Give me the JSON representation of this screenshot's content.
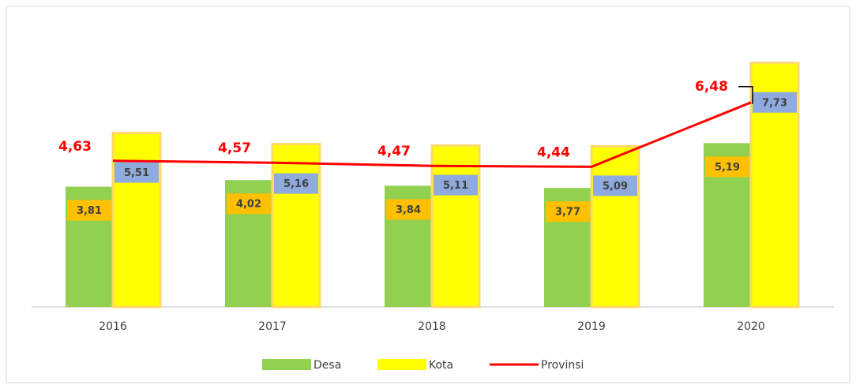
{
  "chart_data": {
    "type": "bar",
    "categories": [
      "2016",
      "2017",
      "2018",
      "2019",
      "2020"
    ],
    "series": [
      {
        "name": "Desa",
        "color": "#92d050",
        "values": [
          3.81,
          4.02,
          3.84,
          3.77,
          5.19
        ],
        "value_labels": [
          "3,81",
          "4,02",
          "3,84",
          "3,77",
          "5,19"
        ]
      },
      {
        "name": "Kota",
        "color": "#ffff00",
        "values": [
          5.51,
          5.16,
          5.11,
          5.09,
          7.73
        ],
        "value_labels": [
          "5,51",
          "5,16",
          "5,11",
          "5,09",
          "7,73"
        ]
      },
      {
        "name": "Provinsi",
        "type": "line",
        "color": "#ff0000",
        "values": [
          4.63,
          4.57,
          4.47,
          4.44,
          6.48
        ],
        "value_labels": [
          "4,63",
          "4,57",
          "4,47",
          "4,44",
          "6,48"
        ]
      }
    ],
    "ylim": [
      0,
      9
    ]
  }
}
